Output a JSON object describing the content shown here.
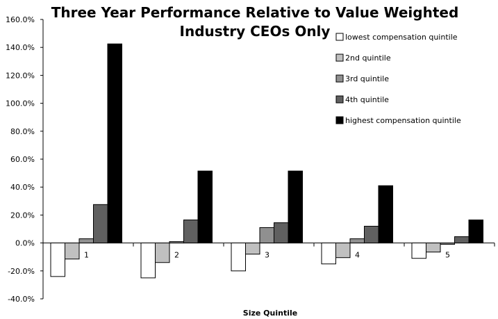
{
  "chart_data": {
    "type": "bar",
    "title_lines": [
      "Three Year Performance Relative to Value Weighted",
      "Industry CEOs Only"
    ],
    "xlabel": "Size Quintile",
    "ylabel": "",
    "ylim": [
      -40,
      160
    ],
    "y_ticks": [
      "160.0%",
      "140.0%",
      "120.0%",
      "100.0%",
      "80.0%",
      "60.0%",
      "40.0%",
      "20.0%",
      "0.0%",
      "-20.0%",
      "-40.0%"
    ],
    "y_tick_values": [
      160,
      140,
      120,
      100,
      80,
      60,
      40,
      20,
      0,
      -20,
      -40
    ],
    "categories": [
      "1",
      "2",
      "3",
      "4",
      "5"
    ],
    "grid": false,
    "legend_position": "top-right",
    "series": [
      {
        "name": "lowest compensation quintile",
        "color": "#ffffff",
        "values": [
          -24,
          -25,
          -20,
          -15,
          -11
        ]
      },
      {
        "name": "2nd quintile",
        "color": "#c0c0c0",
        "values": [
          -11.5,
          -14,
          -8,
          -10.5,
          -6.5
        ]
      },
      {
        "name": "3rd quintile",
        "color": "#909090",
        "values": [
          3,
          1,
          11,
          3,
          -1
        ]
      },
      {
        "name": "4th quintile",
        "color": "#606060",
        "values": [
          27.5,
          16.5,
          14.5,
          12,
          4.5
        ]
      },
      {
        "name": "highest compensation quintile",
        "color": "#000000",
        "values": [
          142.5,
          51.5,
          51.5,
          41,
          16.5
        ]
      }
    ]
  }
}
